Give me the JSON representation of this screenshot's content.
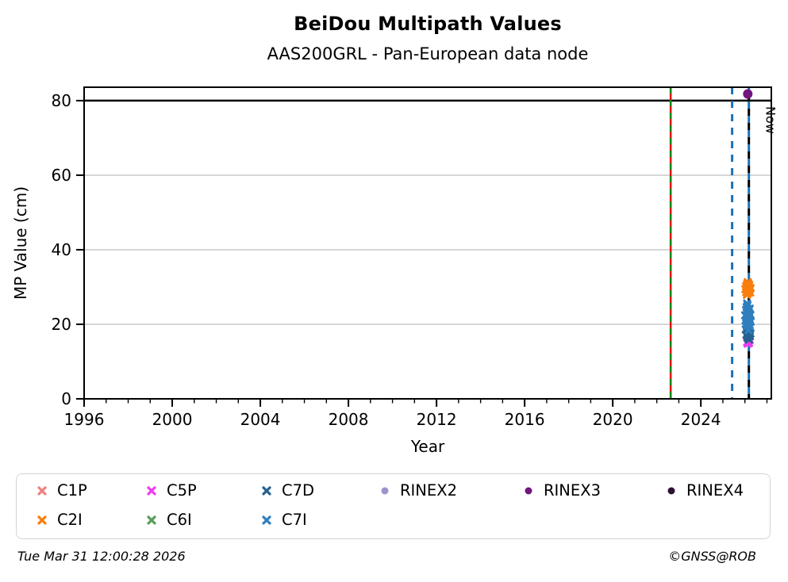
{
  "header": {
    "title": "BeiDou Multipath Values",
    "subtitle": "AAS200GRL - Pan-European data node"
  },
  "footer": {
    "timestamp": "Tue Mar 31 12:00:28 2026",
    "copyright": "©GNSS@ROB"
  },
  "chart_data": {
    "type": "scatter",
    "title": "BeiDou Multipath Values",
    "subtitle": "AAS200GRL - Pan-European data node",
    "xlabel": "Year",
    "ylabel": "MP Value (cm)",
    "xlim": [
      1996,
      2027.2
    ],
    "ylim": [
      0,
      83.6
    ],
    "xticks": [
      1996,
      2000,
      2004,
      2008,
      2012,
      2016,
      2020,
      2024
    ],
    "minor_xtick_step": 1,
    "yticks": [
      0,
      20,
      40,
      60,
      80
    ],
    "grid_y": [
      20,
      40,
      60
    ],
    "grid_color": "#c9c9c9",
    "hline": {
      "y": 80,
      "color": "#000000",
      "width": 2.5
    },
    "now_label": "Now",
    "vlines": [
      {
        "name": "event-line-red",
        "year": 2022.63,
        "color": "#dd1111",
        "dash": "",
        "offset": 0,
        "width": 2.5
      },
      {
        "name": "event-line-green",
        "year": 2022.63,
        "color": "#148a14",
        "dash": "8 8",
        "offset": 0,
        "width": 2.5
      },
      {
        "name": "event-line-blue-1",
        "year": 2025.42,
        "color": "#1c72b8",
        "dash": "9 8",
        "offset": 0,
        "width": 3
      },
      {
        "name": "event-line-blue-2",
        "year": 2026.18,
        "color": "#1c72b8",
        "dash": "9 9",
        "offset": 0,
        "width": 3
      },
      {
        "name": "now-line",
        "year": 2026.18,
        "color": "#000000",
        "dash": "9 9",
        "offset": -9,
        "width": 3,
        "label": "Now"
      }
    ],
    "series": [
      {
        "name": "C1P",
        "color": "#f08080",
        "marker": "x",
        "legend_row": 0,
        "legend_col": 0,
        "points": []
      },
      {
        "name": "C5P",
        "color": "#ee3cf0",
        "marker": "x",
        "legend_row": 0,
        "legend_col": 1,
        "points": [
          [
            2026.1,
            15.2
          ],
          [
            2026.13,
            14.8
          ],
          [
            2026.16,
            15.5
          ],
          [
            2026.19,
            15.0
          ],
          [
            2026.22,
            15.8
          ]
        ]
      },
      {
        "name": "C7D",
        "color": "#27618e",
        "marker": "x",
        "legend_row": 0,
        "legend_col": 2,
        "points": [
          [
            2026.04,
            18.6
          ],
          [
            2026.07,
            17.2
          ],
          [
            2026.09,
            19.4
          ],
          [
            2026.11,
            16.5
          ],
          [
            2026.12,
            18.0
          ],
          [
            2026.14,
            17.0
          ],
          [
            2026.15,
            19.1
          ],
          [
            2026.16,
            16.1
          ],
          [
            2026.18,
            17.8
          ],
          [
            2026.19,
            15.9
          ],
          [
            2026.21,
            18.3
          ],
          [
            2026.23,
            16.8
          ],
          [
            2026.25,
            17.5
          ]
        ]
      },
      {
        "name": "RINEX2",
        "color": "#9a93cc",
        "marker": "circle",
        "legend_row": 0,
        "legend_col": 3,
        "points": []
      },
      {
        "name": "RINEX3",
        "color": "#71167d",
        "marker": "circle",
        "legend_row": 0,
        "legend_col": 4,
        "points": [
          [
            2026.13,
            81.8
          ]
        ]
      },
      {
        "name": "RINEX4",
        "color": "#2e1033",
        "marker": "circle",
        "legend_row": 0,
        "legend_col": 5,
        "points": []
      },
      {
        "name": "C2I",
        "color": "#f87e0e",
        "marker": "x",
        "legend_row": 1,
        "legend_col": 0,
        "points": [
          [
            2026.02,
            29.4
          ],
          [
            2026.05,
            30.2
          ],
          [
            2026.06,
            28.6
          ],
          [
            2026.08,
            29.9
          ],
          [
            2026.09,
            27.9
          ],
          [
            2026.1,
            30.8
          ],
          [
            2026.11,
            29.1
          ],
          [
            2026.12,
            30.4
          ],
          [
            2026.13,
            28.3
          ],
          [
            2026.13,
            31.3
          ],
          [
            2026.14,
            29.6
          ],
          [
            2026.15,
            31.0
          ],
          [
            2026.16,
            29.0
          ],
          [
            2026.17,
            30.1
          ],
          [
            2026.18,
            28.8
          ],
          [
            2026.19,
            29.8
          ],
          [
            2026.2,
            30.5
          ],
          [
            2026.22,
            29.3
          ],
          [
            2026.24,
            28.5
          ],
          [
            2026.26,
            29.7
          ]
        ]
      },
      {
        "name": "C6I",
        "color": "#5a9b5a",
        "marker": "x",
        "legend_row": 1,
        "legend_col": 1,
        "points": []
      },
      {
        "name": "C7I",
        "color": "#2f7fbe",
        "marker": "x",
        "legend_row": 1,
        "legend_col": 2,
        "points": [
          [
            2026.01,
            22.4
          ],
          [
            2026.03,
            21.0
          ],
          [
            2026.05,
            23.8
          ],
          [
            2026.06,
            20.2
          ],
          [
            2026.07,
            22.0
          ],
          [
            2026.08,
            24.6
          ],
          [
            2026.09,
            19.5
          ],
          [
            2026.1,
            21.6
          ],
          [
            2026.1,
            25.6
          ],
          [
            2026.11,
            23.2
          ],
          [
            2026.12,
            20.8
          ],
          [
            2026.12,
            25.1
          ],
          [
            2026.13,
            22.8
          ],
          [
            2026.14,
            19.9
          ],
          [
            2026.15,
            21.3
          ],
          [
            2026.15,
            24.1
          ],
          [
            2026.16,
            20.5
          ],
          [
            2026.17,
            22.3
          ],
          [
            2026.17,
            18.4
          ],
          [
            2026.18,
            23.6
          ],
          [
            2026.19,
            21.8
          ],
          [
            2026.2,
            20.0
          ],
          [
            2026.21,
            22.9
          ],
          [
            2026.22,
            24.2
          ],
          [
            2026.23,
            21.2
          ],
          [
            2026.24,
            19.3
          ],
          [
            2026.25,
            22.5
          ],
          [
            2026.26,
            20.7
          ]
        ]
      }
    ],
    "legend_position": "bottom"
  }
}
